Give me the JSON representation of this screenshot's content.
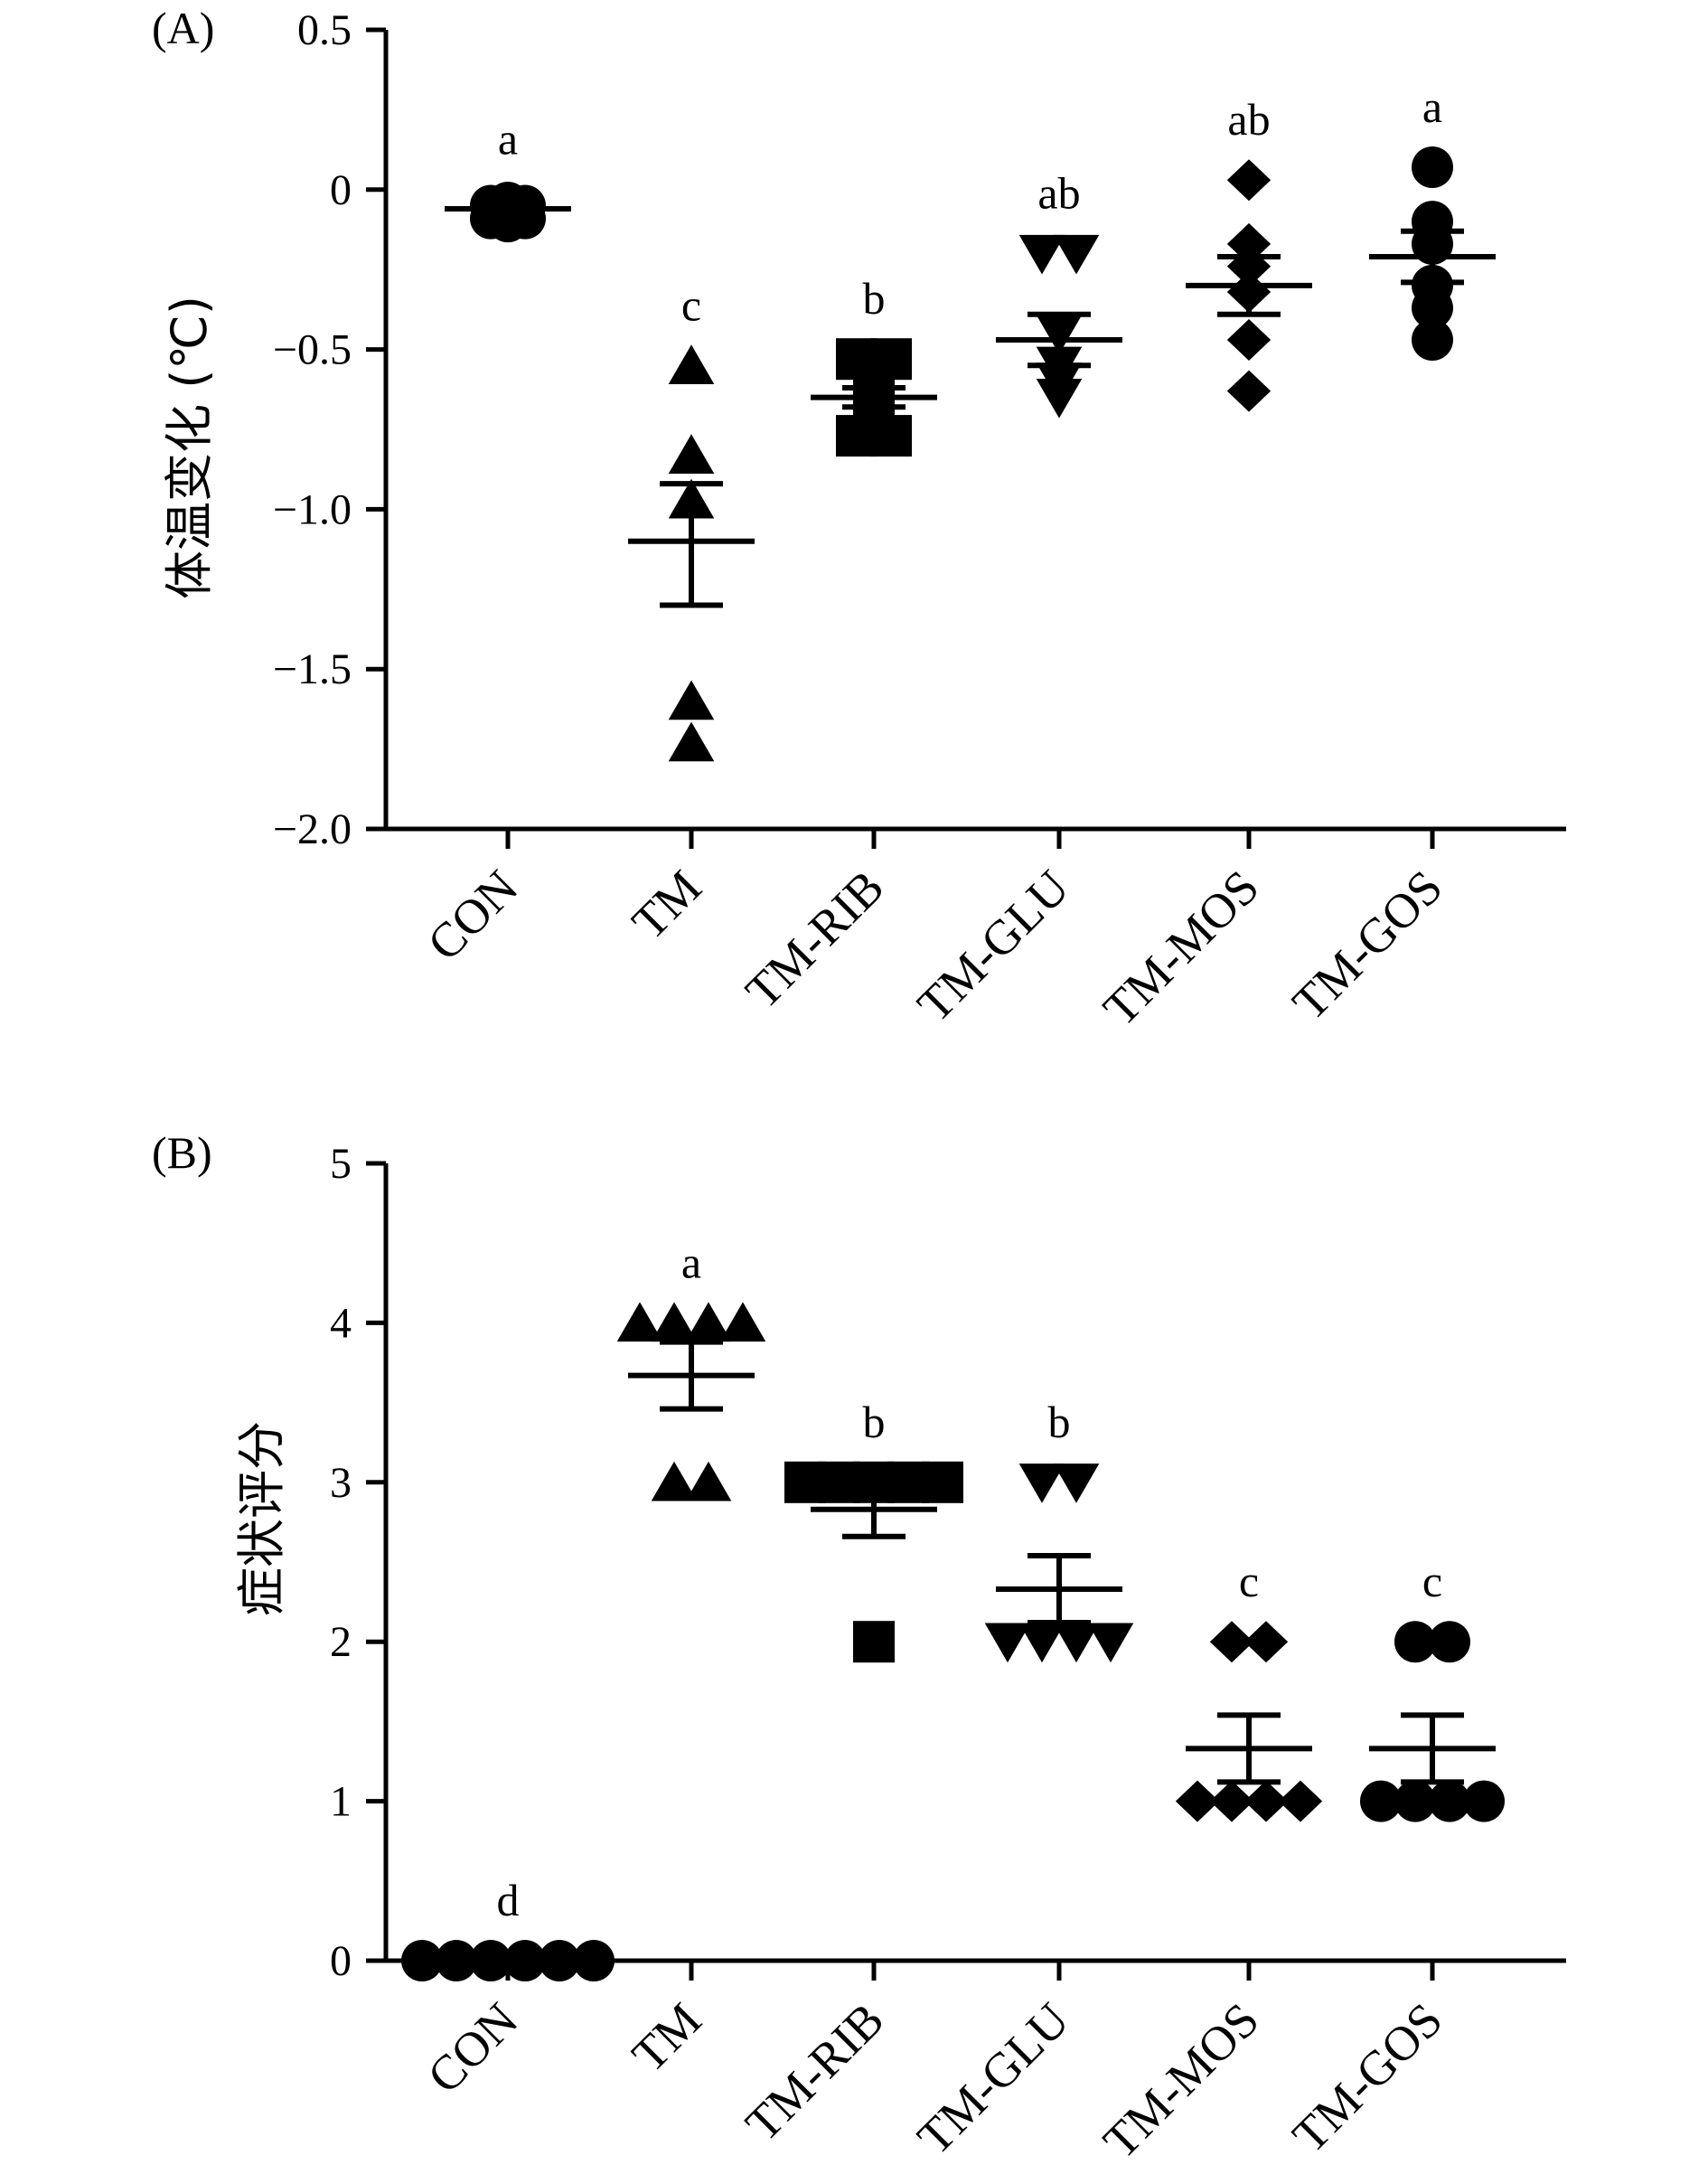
{
  "chart_data": [
    {
      "panel": "(A)",
      "type": "scatter",
      "ylabel": "体温变化 (℃)",
      "ylim": [
        -2.0,
        0.5
      ],
      "yticks": [
        0.5,
        0,
        -0.5,
        -1.0,
        -1.5,
        -2.0
      ],
      "ytick_labels": [
        "0.5",
        "0",
        "−0.5",
        "−1.0",
        "−1.5",
        "−2.0"
      ],
      "categories": [
        "CON",
        "TM",
        "TM-RIB",
        "TM-GLU",
        "TM-MOS",
        "TM-GOS"
      ],
      "groups": [
        {
          "name": "CON",
          "marker": "circle",
          "points": [
            -0.05,
            -0.04,
            -0.05,
            -0.1,
            -0.09,
            -0.09
          ],
          "mean": -0.06,
          "sem_upper": -0.03,
          "sem_lower": -0.09,
          "significance": "a"
        },
        {
          "name": "TM",
          "marker": "triangle-up",
          "points": [
            -0.55,
            -0.83,
            -0.97,
            -1.6,
            -1.73
          ],
          "mean": -1.1,
          "sem_upper": -0.92,
          "sem_lower": -1.3,
          "significance": "c"
        },
        {
          "name": "TM-RIB",
          "marker": "square",
          "points": [
            -0.53,
            -0.53,
            -0.6,
            -0.65,
            -0.77,
            -0.77
          ],
          "mean": -0.65,
          "sem_upper": -0.62,
          "sem_lower": -0.68,
          "significance": "b"
        },
        {
          "name": "TM-GLU",
          "marker": "triangle-down",
          "points": [
            -0.2,
            -0.2,
            -0.45,
            -0.55,
            -0.6,
            -0.65
          ],
          "mean": -0.47,
          "sem_upper": -0.39,
          "sem_lower": -0.55,
          "significance": "ab"
        },
        {
          "name": "TM-MOS",
          "marker": "diamond",
          "points": [
            0.03,
            -0.17,
            -0.24,
            -0.32,
            -0.47,
            -0.63
          ],
          "mean": -0.3,
          "sem_upper": -0.21,
          "sem_lower": -0.39,
          "significance": "ab"
        },
        {
          "name": "TM-GOS",
          "marker": "circle",
          "points": [
            0.07,
            -0.1,
            -0.17,
            -0.3,
            -0.37,
            -0.47
          ],
          "mean": -0.21,
          "sem_upper": -0.13,
          "sem_lower": -0.29,
          "significance": "a"
        }
      ]
    },
    {
      "panel": "(B)",
      "type": "scatter",
      "ylabel": "症状评分",
      "ylim": [
        0,
        5
      ],
      "yticks": [
        5,
        4,
        3,
        2,
        1,
        0
      ],
      "ytick_labels": [
        "5",
        "4",
        "3",
        "2",
        "1",
        "0"
      ],
      "categories": [
        "CON",
        "TM",
        "TM-RIB",
        "TM-GLU",
        "TM-MOS",
        "TM-GOS"
      ],
      "groups": [
        {
          "name": "CON",
          "marker": "circle",
          "points": [
            0,
            0,
            0,
            0,
            0,
            0
          ],
          "mean": 0,
          "sem_upper": 0,
          "sem_lower": 0,
          "significance": "d"
        },
        {
          "name": "TM",
          "marker": "triangle-up",
          "points": [
            4,
            4,
            4,
            4,
            3,
            3
          ],
          "mean": 3.67,
          "sem_upper": 3.88,
          "sem_lower": 3.46,
          "significance": "a"
        },
        {
          "name": "TM-RIB",
          "marker": "square",
          "points": [
            3,
            3,
            3,
            3,
            3,
            2
          ],
          "mean": 2.83,
          "sem_upper": 3.0,
          "sem_lower": 2.66,
          "significance": "b"
        },
        {
          "name": "TM-GLU",
          "marker": "triangle-down",
          "points": [
            3,
            3,
            2,
            2,
            2,
            2
          ],
          "mean": 2.33,
          "sem_upper": 2.54,
          "sem_lower": 2.12,
          "significance": "b"
        },
        {
          "name": "TM-MOS",
          "marker": "diamond",
          "points": [
            2,
            2,
            1,
            1,
            1,
            1
          ],
          "mean": 1.33,
          "sem_upper": 1.54,
          "sem_lower": 1.12,
          "significance": "c"
        },
        {
          "name": "TM-GOS",
          "marker": "circle",
          "points": [
            2,
            2,
            1,
            1,
            1,
            1
          ],
          "mean": 1.33,
          "sem_upper": 1.54,
          "sem_lower": 1.12,
          "significance": "c"
        }
      ]
    }
  ]
}
